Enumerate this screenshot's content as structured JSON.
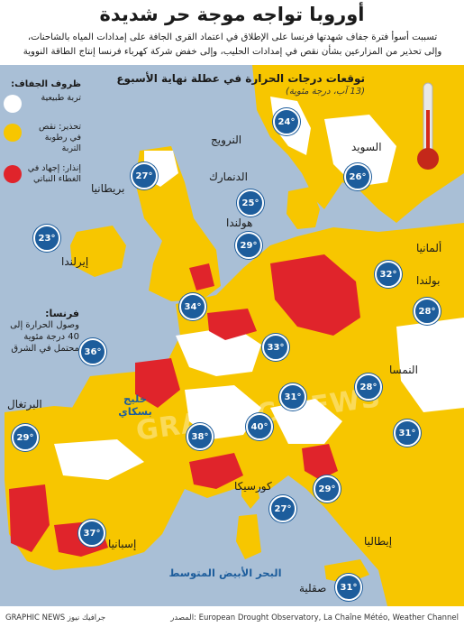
{
  "header": {
    "title": "أوروبا تواجه موجة حر شديدة",
    "subtitle_line1": "تسببت أسوأ فترة جفاف شهدتها فرنسا على الإطلاق في اعتماد القرى الجافة على إمدادات المياه بالشاحنات،",
    "subtitle_line2": "وإلى تحذير من المزارعين بشأن نقص في إمدادات الحليب، وإلى خفض شركة كهرباء فرنسا إنتاج الطاقة النووية"
  },
  "legend": {
    "heading": "ظروف الجفاف:",
    "items": [
      {
        "label": "تربة طبيعية",
        "color": "#ffffff"
      },
      {
        "label": "تحذير: نقص في رطوبة التربة",
        "color": "#f7c600"
      },
      {
        "label": "إنذار: إجهاد في الغطاء النباتي",
        "color": "#e0242b"
      }
    ]
  },
  "forecast": {
    "heading": "توقعات درجات الحرارة في عطلة نهاية الأسبوع",
    "subheading": "(13 آب، درجة مئوية)"
  },
  "france_note": {
    "heading": "فرنسا:",
    "body": "وصول الحرارة إلى 40 درجة مئوية محتمل في الشرق"
  },
  "countries": [
    {
      "id": "norway",
      "name": "النرويج"
    },
    {
      "id": "sweden",
      "name": "السويد"
    },
    {
      "id": "denmark",
      "name": "الدنمارك"
    },
    {
      "id": "britain",
      "name": "بريطانيا"
    },
    {
      "id": "ireland",
      "name": "إيرلندا"
    },
    {
      "id": "netherlands",
      "name": "هولندا"
    },
    {
      "id": "germany",
      "name": "ألمانيا"
    },
    {
      "id": "poland",
      "name": "بولندا"
    },
    {
      "id": "austria",
      "name": "النمسا"
    },
    {
      "id": "portugal",
      "name": "البرتغال"
    },
    {
      "id": "spain",
      "name": "إسبانيا"
    },
    {
      "id": "italy",
      "name": "إيطاليا"
    },
    {
      "id": "corsica",
      "name": "كورسيكا"
    },
    {
      "id": "sicily",
      "name": "صقلية"
    }
  ],
  "seas": [
    {
      "id": "biscay",
      "name": "خليج بسكاي"
    },
    {
      "id": "med",
      "name": "البحر الأبيض المتوسط"
    }
  ],
  "temperatures": [
    {
      "id": "norway",
      "value": "24°"
    },
    {
      "id": "sweden",
      "value": "26°"
    },
    {
      "id": "britain-north",
      "value": "27°"
    },
    {
      "id": "denmark",
      "value": "25°"
    },
    {
      "id": "ireland",
      "value": "23°"
    },
    {
      "id": "netherlands",
      "value": "29°"
    },
    {
      "id": "germany",
      "value": "32°"
    },
    {
      "id": "london",
      "value": "34°"
    },
    {
      "id": "poland",
      "value": "28°"
    },
    {
      "id": "france-west",
      "value": "36°"
    },
    {
      "id": "france-east",
      "value": "33°"
    },
    {
      "id": "austria",
      "value": "28°"
    },
    {
      "id": "north-italy",
      "value": "31°"
    },
    {
      "id": "balkans",
      "value": "31°"
    },
    {
      "id": "france-south",
      "value": "40°"
    },
    {
      "id": "france-southwest",
      "value": "38°"
    },
    {
      "id": "portugal",
      "value": "29°"
    },
    {
      "id": "italy-center",
      "value": "29°"
    },
    {
      "id": "corsica",
      "value": "27°"
    },
    {
      "id": "spain",
      "value": "37°"
    },
    {
      "id": "sicily",
      "value": "31°"
    }
  ],
  "footer": {
    "source": "المصدر: European Drought Observatory, La Chaîne Météo, Weather Channel",
    "brand": "GRAPHIC NEWS جرافيك نيوز"
  },
  "watermark": "GRAPHIC NEWS",
  "colors": {
    "sea": "#a9bfd6",
    "warning": "#f7c600",
    "alert": "#e0242b",
    "circle": "#1d5d9c"
  }
}
